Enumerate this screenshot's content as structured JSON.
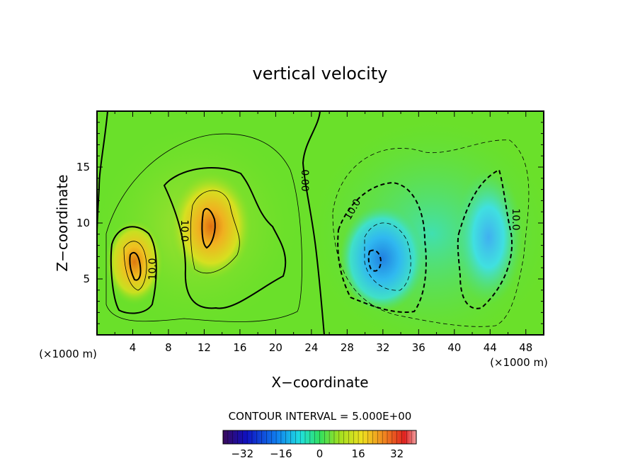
{
  "chart_data": {
    "type": "heatmap",
    "title": "vertical velocity",
    "xlabel": "X−coordinate",
    "ylabel": "Z−coordinate",
    "x_units_left": "(×1000 m)",
    "x_units_right": "(×1000 m)",
    "xlim": [
      0,
      50
    ],
    "ylim": [
      0,
      20
    ],
    "x_ticks": [
      "4",
      "8",
      "12",
      "16",
      "20",
      "24",
      "28",
      "32",
      "36",
      "40",
      "44",
      "48"
    ],
    "y_ticks": [
      "5",
      "10",
      "15"
    ],
    "contour_interval_text": "CONTOUR INTERVAL = 5.000E+00",
    "contour_labels": [
      "10.0",
      "10.0",
      "0.00",
      "10.0",
      "10.0"
    ],
    "colorbar": {
      "range": [
        -40,
        40
      ],
      "tick_labels": [
        "−32",
        "−16",
        "0",
        "16",
        "32"
      ],
      "tick_values": [
        -32,
        -16,
        0,
        16,
        32
      ]
    },
    "features": [
      {
        "kind": "updraft",
        "x": 4.5,
        "z": 6.5,
        "peak": 22
      },
      {
        "kind": "updraft",
        "x": 12.5,
        "z": 9.5,
        "peak": 26
      },
      {
        "kind": "downdraft",
        "x": 31.5,
        "z": 7,
        "peak": -18
      },
      {
        "kind": "downdraft",
        "x": 43.5,
        "z": 8,
        "peak": -13
      }
    ]
  }
}
